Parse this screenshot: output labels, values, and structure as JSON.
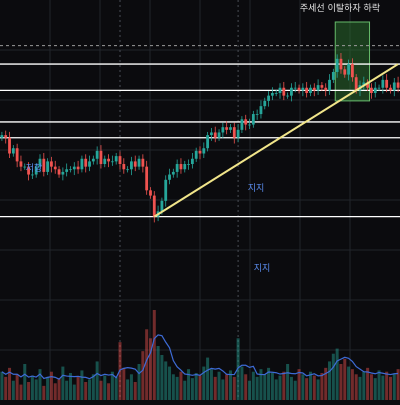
{
  "chart_data": {
    "type": "candlestick",
    "annotations": {
      "title_note": "주세선 이탈하자 하락",
      "resistance_label": "저항",
      "support_label": "지지",
      "mid_label": "지지"
    },
    "colors": {
      "background": "#0b0b0e",
      "up": "#26a69a",
      "down": "#ef5350",
      "trendline": "#f1e58a",
      "levels": "#ffffff",
      "highlight_fill": "#2e7d32",
      "highlight_stroke": "#66bb6a",
      "label": "#5b8def",
      "volume_ma": "#3d6bd6",
      "grid": "#22252b"
    },
    "ylim": [
      0,
      100
    ],
    "levels": [
      26,
      56,
      62,
      74,
      84
    ],
    "dashed_level": 91,
    "trendline": {
      "from": {
        "i": 40,
        "p": 26
      },
      "to": {
        "i": 104,
        "p": 84
      }
    },
    "highlight_range": {
      "from_i": 88,
      "to_i": 97,
      "low": 70,
      "high": 100
    },
    "vlines_i": [
      31,
      62
    ],
    "candles_close": [
      57,
      56,
      50,
      52,
      47,
      45,
      45,
      42,
      42,
      45,
      48,
      43,
      47,
      45,
      44,
      42,
      43,
      44,
      44,
      45,
      44,
      48,
      45,
      47,
      48,
      51,
      46,
      48,
      47,
      47,
      49,
      46,
      44,
      44,
      47,
      45,
      48,
      45,
      36,
      34,
      26,
      28,
      32,
      40,
      42,
      43,
      46,
      44,
      46,
      46,
      48,
      51,
      50,
      52,
      57,
      58,
      56,
      58,
      60,
      59,
      60,
      56,
      59,
      63,
      61,
      61,
      65,
      65,
      68,
      70,
      72,
      73,
      73,
      75,
      72,
      72,
      75,
      75,
      74,
      75,
      73,
      75,
      74,
      76,
      75,
      74,
      78,
      81,
      86,
      82,
      80,
      84,
      79,
      74,
      76,
      77,
      75,
      73,
      75,
      75,
      78,
      75,
      74,
      77,
      75
    ],
    "volume": [
      22,
      18,
      25,
      15,
      20,
      12,
      28,
      14,
      19,
      16,
      24,
      11,
      18,
      22,
      13,
      17,
      26,
      15,
      21,
      12,
      18,
      23,
      14,
      16,
      20,
      30,
      15,
      19,
      13,
      22,
      18,
      45,
      25,
      16,
      20,
      14,
      28,
      38,
      55,
      48,
      70,
      42,
      35,
      30,
      26,
      20,
      18,
      22,
      15,
      24,
      17,
      21,
      19,
      26,
      33,
      24,
      18,
      22,
      16,
      20,
      23,
      18,
      48,
      26,
      20,
      15,
      22,
      18,
      24,
      20,
      25,
      21,
      16,
      19,
      22,
      28,
      18,
      15,
      24,
      20,
      17,
      22,
      19,
      16,
      21,
      25,
      30,
      36,
      40,
      28,
      32,
      26,
      24,
      20,
      18,
      22,
      25,
      20,
      17,
      23,
      19,
      22,
      18,
      20,
      24
    ]
  }
}
